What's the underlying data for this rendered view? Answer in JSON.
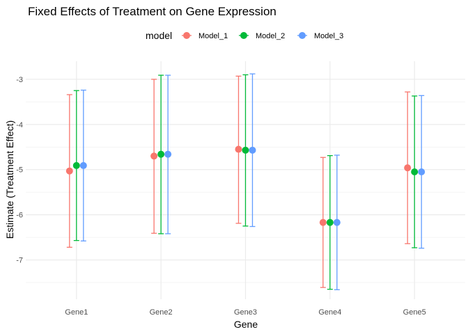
{
  "chart_data": {
    "type": "scatter",
    "title": "Fixed Effects of Treatment on Gene Expression",
    "xlabel": "Gene",
    "ylabel": "Estimate (Treatment Effect)",
    "categories": [
      "Gene1",
      "Gene2",
      "Gene3",
      "Gene4",
      "Gene5"
    ],
    "y_ticks": [
      -7,
      -6,
      -5,
      -4,
      -3
    ],
    "ylim": [
      -7.87,
      -2.6
    ],
    "grid": true,
    "legend": {
      "title": "model",
      "position": "top"
    },
    "series": [
      {
        "name": "Model_1",
        "color": "#F8766D",
        "values": [
          -5.03,
          -4.7,
          -4.55,
          -6.17,
          -4.96
        ],
        "lower": [
          -6.72,
          -6.41,
          -6.19,
          -7.61,
          -6.64
        ],
        "upper": [
          -3.34,
          -3.0,
          -2.93,
          -4.73,
          -3.28
        ]
      },
      {
        "name": "Model_2",
        "color": "#00BA38",
        "values": [
          -4.91,
          -4.66,
          -4.57,
          -6.17,
          -5.05
        ],
        "lower": [
          -6.57,
          -6.42,
          -6.25,
          -7.65,
          -6.73
        ],
        "upper": [
          -3.25,
          -2.91,
          -2.9,
          -4.69,
          -3.37
        ]
      },
      {
        "name": "Model_3",
        "color": "#619CFF",
        "values": [
          -4.91,
          -4.66,
          -4.57,
          -6.17,
          -5.05
        ],
        "lower": [
          -6.58,
          -6.42,
          -6.26,
          -7.66,
          -6.74
        ],
        "upper": [
          -3.24,
          -2.91,
          -2.88,
          -4.68,
          -3.36
        ]
      }
    ]
  }
}
